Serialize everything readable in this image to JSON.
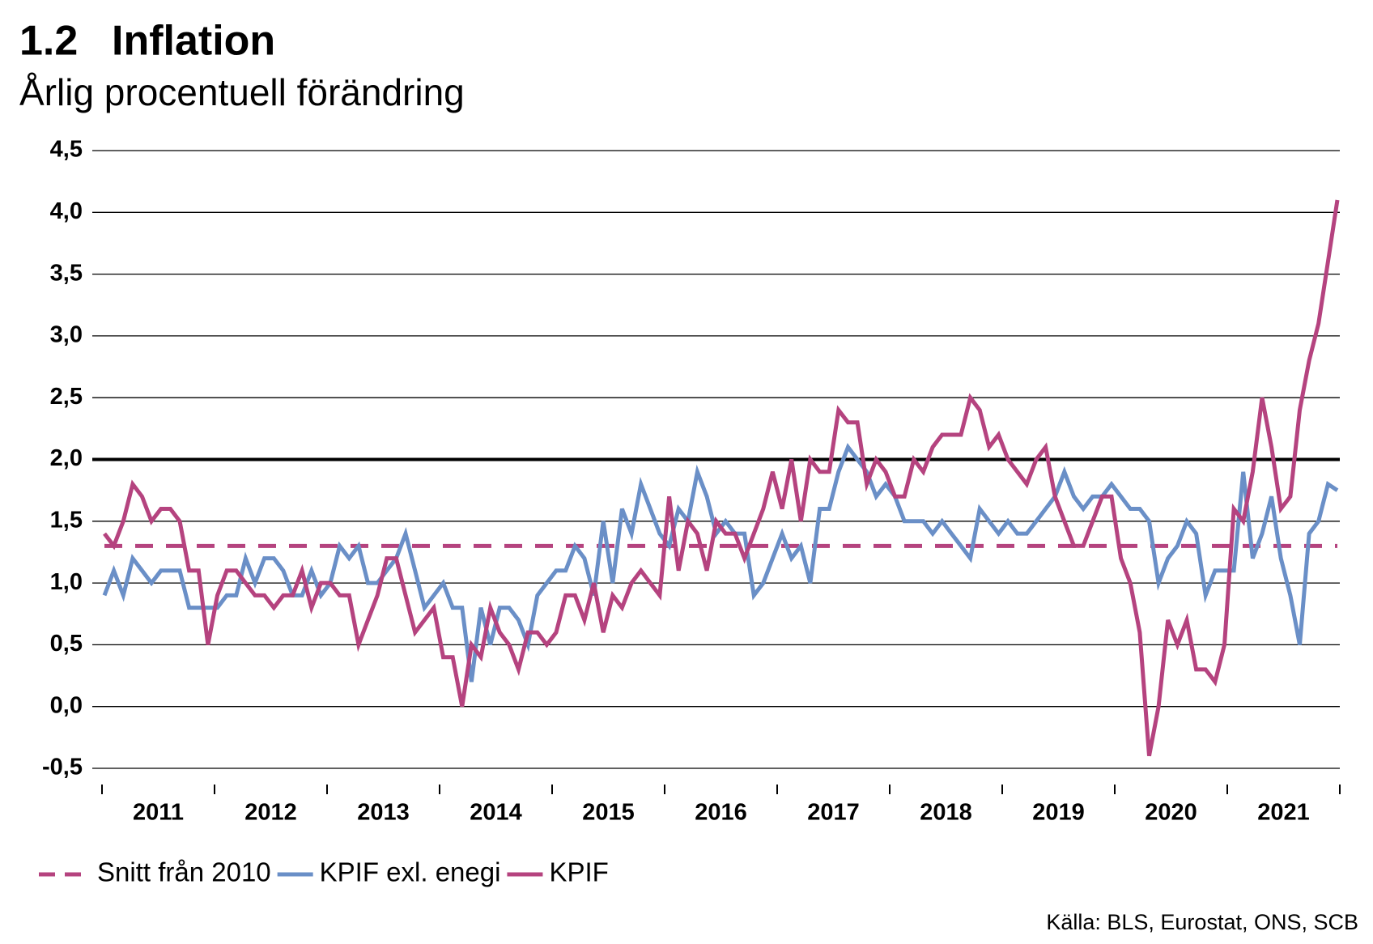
{
  "chart_data": {
    "type": "line",
    "number": "1.2",
    "title": "Inflation",
    "subtitle": "Årlig procentuell förändring",
    "source": "Källa: BLS, Eurostat, ONS, SCB",
    "categories": [
      "2011",
      null,
      null,
      null,
      null,
      null,
      null,
      null,
      null,
      null,
      null,
      null,
      "2012",
      null,
      null,
      null,
      null,
      null,
      null,
      null,
      null,
      null,
      null,
      null,
      "2013",
      null,
      null,
      null,
      null,
      null,
      null,
      null,
      null,
      null,
      null,
      null,
      "2014",
      null,
      null,
      null,
      null,
      null,
      null,
      null,
      null,
      null,
      null,
      null,
      "2015",
      null,
      null,
      null,
      null,
      null,
      null,
      null,
      null,
      null,
      null,
      null,
      "2016",
      null,
      null,
      null,
      null,
      null,
      null,
      null,
      null,
      null,
      null,
      null,
      "2017",
      null,
      null,
      null,
      null,
      null,
      null,
      null,
      null,
      null,
      null,
      null,
      "2018",
      null,
      null,
      null,
      null,
      null,
      null,
      null,
      null,
      null,
      null,
      null,
      "2019",
      null,
      null,
      null,
      null,
      null,
      null,
      null,
      null,
      null,
      null,
      null,
      "2020",
      null,
      null,
      null,
      null,
      null,
      null,
      null,
      null,
      null,
      null,
      null,
      "2021",
      null,
      null,
      null,
      null,
      null,
      null,
      null,
      null,
      null,
      null,
      null
    ],
    "reference_series": {
      "name": "Snitt från 2010",
      "color": "#b5437f",
      "value": 1.3,
      "style": "dashed"
    },
    "series": [
      {
        "name": "KPIF exl. enegi",
        "color": "#6a8fc7",
        "values": [
          0.9,
          1.1,
          0.9,
          1.2,
          1.1,
          1.0,
          1.1,
          1.1,
          1.1,
          0.8,
          0.8,
          0.8,
          0.8,
          0.9,
          0.9,
          1.2,
          1.0,
          1.2,
          1.2,
          1.1,
          0.9,
          0.9,
          1.1,
          0.9,
          1.0,
          1.3,
          1.2,
          1.3,
          1.0,
          1.0,
          1.1,
          1.2,
          1.4,
          1.1,
          0.8,
          0.9,
          1.0,
          0.8,
          0.8,
          0.2,
          0.8,
          0.5,
          0.8,
          0.8,
          0.7,
          0.5,
          0.9,
          1.0,
          1.1,
          1.1,
          1.3,
          1.2,
          0.9,
          1.5,
          1.0,
          1.6,
          1.4,
          1.8,
          1.6,
          1.4,
          1.3,
          1.6,
          1.5,
          1.9,
          1.7,
          1.4,
          1.5,
          1.4,
          1.4,
          0.9,
          1.0,
          1.2,
          1.4,
          1.2,
          1.3,
          1.0,
          1.6,
          1.6,
          1.9,
          2.1,
          2.0,
          1.9,
          1.7,
          1.8,
          1.7,
          1.5,
          1.5,
          1.5,
          1.4,
          1.5,
          1.4,
          1.3,
          1.2,
          1.6,
          1.5,
          1.4,
          1.5,
          1.4,
          1.4,
          1.5,
          1.6,
          1.7,
          1.9,
          1.7,
          1.6,
          1.7,
          1.7,
          1.8,
          1.7,
          1.6,
          1.6,
          1.5,
          1.0,
          1.2,
          1.3,
          1.5,
          1.4,
          0.9,
          1.1,
          1.1,
          1.1,
          1.9,
          1.2,
          1.4,
          1.7,
          1.2,
          0.9,
          0.5,
          1.4,
          1.5,
          1.8,
          1.75
        ]
      },
      {
        "name": "KPIF",
        "color": "#b5437f",
        "values": [
          1.4,
          1.3,
          1.5,
          1.8,
          1.7,
          1.5,
          1.6,
          1.6,
          1.5,
          1.1,
          1.1,
          0.5,
          0.9,
          1.1,
          1.1,
          1.0,
          0.9,
          0.9,
          0.8,
          0.9,
          0.9,
          1.1,
          0.8,
          1.0,
          1.0,
          0.9,
          0.9,
          0.5,
          0.7,
          0.9,
          1.2,
          1.2,
          0.9,
          0.6,
          0.7,
          0.8,
          0.4,
          0.4,
          0.0,
          0.5,
          0.4,
          0.8,
          0.6,
          0.5,
          0.3,
          0.6,
          0.6,
          0.5,
          0.6,
          0.9,
          0.9,
          0.7,
          1.0,
          0.6,
          0.9,
          0.8,
          1.0,
          1.1,
          1.0,
          0.9,
          1.7,
          1.1,
          1.5,
          1.4,
          1.1,
          1.5,
          1.4,
          1.4,
          1.2,
          1.4,
          1.6,
          1.9,
          1.6,
          2.0,
          1.5,
          2.0,
          1.9,
          1.9,
          2.4,
          2.3,
          2.3,
          1.8,
          2.0,
          1.9,
          1.7,
          1.7,
          2.0,
          1.9,
          2.1,
          2.2,
          2.2,
          2.2,
          2.5,
          2.4,
          2.1,
          2.2,
          2.0,
          1.9,
          1.8,
          2.0,
          2.1,
          1.7,
          1.5,
          1.3,
          1.3,
          1.5,
          1.7,
          1.7,
          1.2,
          1.0,
          0.6,
          -0.4,
          0.0,
          0.7,
          0.5,
          0.7,
          0.3,
          0.3,
          0.2,
          0.5,
          1.6,
          1.5,
          1.9,
          2.5,
          2.1,
          1.6,
          1.7,
          2.4,
          2.8,
          3.1,
          3.6,
          4.1
        ]
      }
    ],
    "ylim": [
      -0.5,
      4.5
    ],
    "yticks": [
      {
        "value": -0.5,
        "label": "-0,5"
      },
      {
        "value": 0,
        "label": "0,0"
      },
      {
        "value": 0.5,
        "label": "0,5"
      },
      {
        "value": 1,
        "label": "1,0"
      },
      {
        "value": 1.5,
        "label": "1,5"
      },
      {
        "value": 2,
        "label": "2,0"
      },
      {
        "value": 2.5,
        "label": "2,5"
      },
      {
        "value": 3,
        "label": "3,0"
      },
      {
        "value": 3.5,
        "label": "3,5"
      },
      {
        "value": 4,
        "label": "4,0"
      },
      {
        "value": 4.5,
        "label": "4,5"
      }
    ],
    "target_line": 2,
    "grid": true,
    "legend": "bottom"
  }
}
